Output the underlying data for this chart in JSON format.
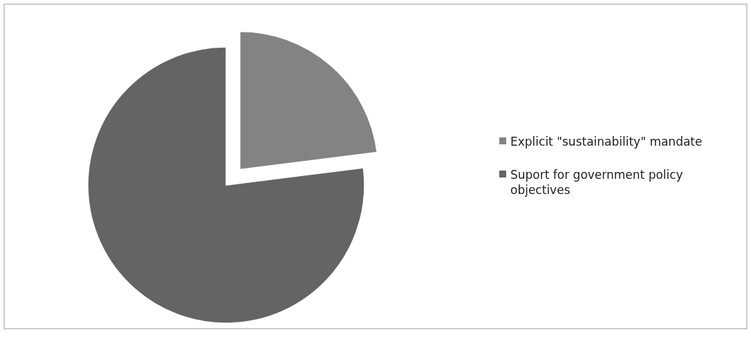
{
  "chart_data": {
    "type": "pie",
    "categories": [
      "Explicit \"sustainability\" mandate",
      "Suport for government policy objectives"
    ],
    "values": [
      23,
      77
    ],
    "colors": [
      "#838383",
      "#646464"
    ],
    "legend": "right"
  }
}
